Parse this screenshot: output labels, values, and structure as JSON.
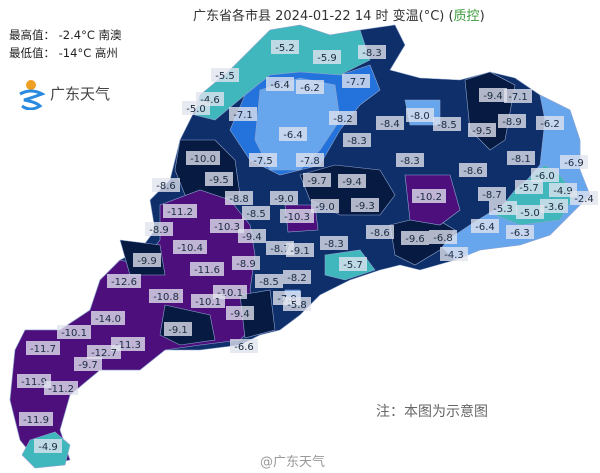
{
  "header": {
    "title": "广东省各市县 2024-01-22 14 时 变温(°C) (",
    "qc": "质控",
    "title_end": ")"
  },
  "stats": {
    "max_label": "最高值： -2.4°C 南澳",
    "min_label": "最低值： -14°C 高州"
  },
  "logo": {
    "text": "广东天气"
  },
  "note": "注：本图为示意图",
  "watermark": "@广东天气",
  "colors": {
    "teal": "#3fb7bd",
    "light_blue": "#67a6ec",
    "blue": "#2473dc",
    "navy": "#0f2f6a",
    "dark_navy": "#061a42",
    "purple": "#4c0f7c",
    "border": "#8fa6cf"
  },
  "labels": [
    "-5.2",
    "-5.9",
    "-8.3",
    "-5.5",
    "-6.4",
    "-6.2",
    "-7.7",
    "-4.6",
    "-5.0",
    "-9.4",
    "-7.1",
    "-7.1",
    "-8.2",
    "-8.4",
    "-8.0",
    "-8.5",
    "-9.5",
    "-8.9",
    "-6.2",
    "-6.4",
    "-8.3",
    "-10.0",
    "-7.5",
    "-7.8",
    "-8.3",
    "-8.1",
    "-6.9",
    "-9.5",
    "-9.7",
    "-9.4",
    "-8.6",
    "-6.0",
    "-8.6",
    "-5.7",
    "-4.9",
    "-2.4",
    "-8.8",
    "-9.0",
    "-10.2",
    "-8.7",
    "-3.6",
    "-11.2",
    "-8.5",
    "-9.0",
    "-9.3",
    "-10.3",
    "-5.3",
    "-5.0",
    "-8.9",
    "-10.3",
    "-9.4",
    "-8.6",
    "-9.6",
    "-6.8",
    "-6.4",
    "-6.3",
    "-10.4",
    "-8.7",
    "-9.1",
    "-8.3",
    "-4.3",
    "-9.9",
    "-8.9",
    "-5.7",
    "-11.6",
    "-12.6",
    "-8.5",
    "-8.2",
    "-10.8",
    "-10.1",
    "-10.1",
    "-7.8",
    "-5.8",
    "-14.0",
    "-9.4",
    "-9.1",
    "-10.1",
    "-11.3",
    "-6.6",
    "-11.7",
    "-12.7",
    "-9.7",
    "-11.9",
    "-11.2",
    "-11.9",
    "-4.9"
  ]
}
